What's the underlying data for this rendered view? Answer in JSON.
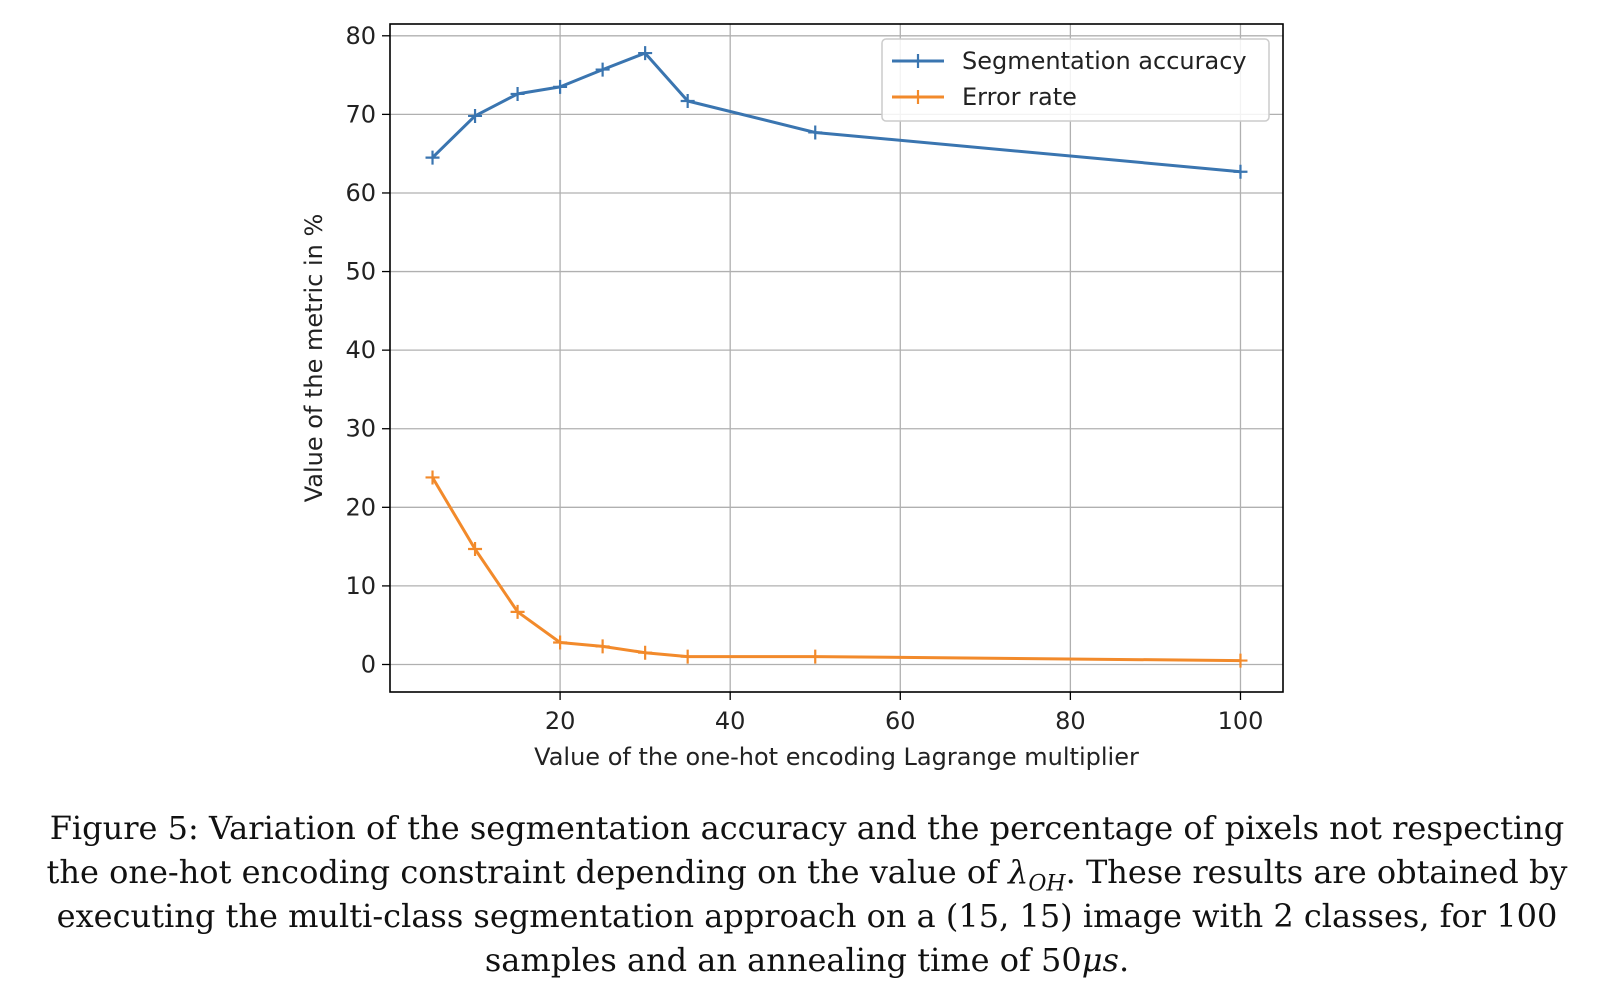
{
  "chart_data": {
    "type": "line",
    "title": "",
    "xlabel": "Value of the one-hot encoding Lagrange multiplier",
    "ylabel": "Value of the metric in %",
    "xlim": [
      0,
      105
    ],
    "ylim": [
      -3.5,
      81.5
    ],
    "xticks": [
      20,
      40,
      60,
      80,
      100
    ],
    "yticks": [
      0,
      10,
      20,
      30,
      40,
      50,
      60,
      70,
      80
    ],
    "grid": true,
    "legend_position": "top-right",
    "x": [
      5,
      10,
      15,
      20,
      25,
      30,
      35,
      50,
      100
    ],
    "series": [
      {
        "name": "Segmentation accuracy",
        "color": "#3a75b0",
        "marker": "+",
        "values": [
          64.5,
          69.8,
          72.6,
          73.5,
          75.7,
          77.8,
          71.7,
          67.7,
          62.7
        ]
      },
      {
        "name": "Error rate",
        "color": "#f28a2b",
        "marker": "+",
        "values": [
          23.8,
          14.7,
          6.7,
          2.8,
          2.3,
          1.5,
          1.0,
          1.0,
          0.5
        ]
      }
    ]
  },
  "caption": {
    "label": "Figure 5:",
    "text_1": " Variation of the segmentation accuracy and the percentage of pixels not respecting the one-hot encoding constraint depending on the value of ",
    "lambda_symbol": "λ",
    "lambda_subscript": "OH",
    "text_2": ". These results are obtained by executing the multi-class segmentation approach on a ",
    "tuple": "(15, 15)",
    "text_3": " image with 2 classes, for 100 samples and an annealing time of ",
    "time_value": "50",
    "time_unit": "μs",
    "text_4": "."
  }
}
